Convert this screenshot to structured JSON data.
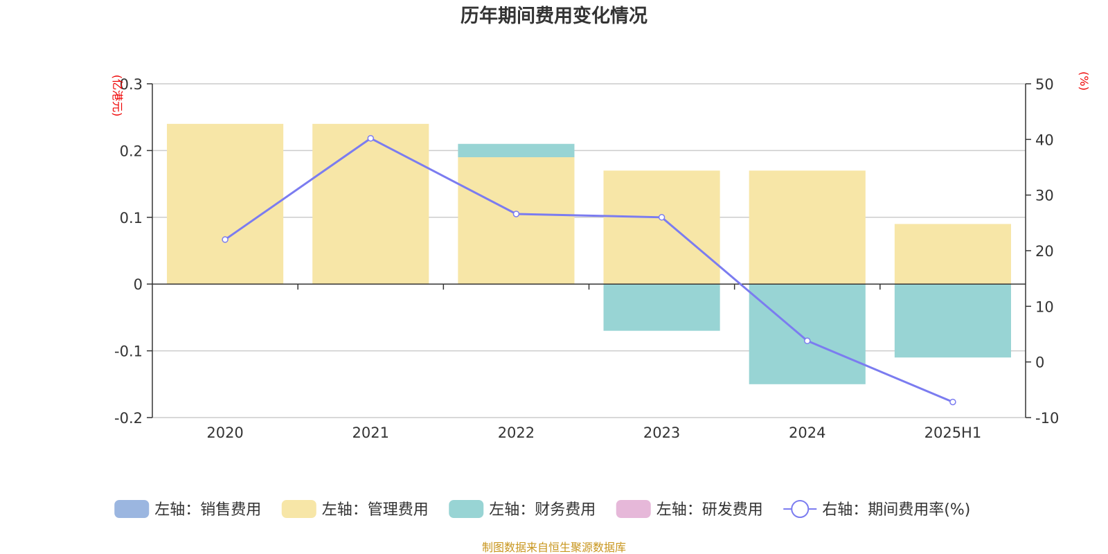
{
  "chart_data": {
    "type": "bar",
    "title": "历年期间费用变化情况",
    "categories": [
      "2020",
      "2021",
      "2022",
      "2023",
      "2024",
      "2025H1"
    ],
    "left_axis": {
      "unit_label": "(亿港元)",
      "ylim": [
        -0.2,
        0.3
      ],
      "ticks": [
        -0.2,
        -0.1,
        0,
        0.1,
        0.2,
        0.3
      ],
      "tick_labels": [
        "-0.2",
        "-0.1",
        "0",
        "0.1",
        "0.2",
        "0.3"
      ]
    },
    "right_axis": {
      "unit_label": "(%)",
      "ylim": [
        -10,
        50
      ],
      "ticks": [
        -10,
        0,
        10,
        20,
        30,
        40,
        50
      ],
      "tick_labels": [
        "-10",
        "0",
        "10",
        "20",
        "30",
        "40",
        "50"
      ]
    },
    "series": [
      {
        "name": "左轴：销售费用",
        "type": "bar",
        "axis": "left",
        "color": "#9bb6e0",
        "values": [
          0,
          0,
          0,
          0,
          0,
          0
        ]
      },
      {
        "name": "左轴：管理费用",
        "type": "bar",
        "axis": "left",
        "color": "#f7e6a7",
        "values": [
          0.24,
          0.24,
          0.19,
          0.17,
          0.17,
          0.09
        ]
      },
      {
        "name": "左轴：财务费用",
        "type": "bar",
        "axis": "left",
        "color": "#98d4d4",
        "values": [
          0,
          0,
          0.02,
          -0.07,
          -0.15,
          -0.11
        ]
      },
      {
        "name": "左轴：研发费用",
        "type": "bar",
        "axis": "left",
        "color": "#e6b8d9",
        "values": [
          0,
          0,
          0,
          0,
          0,
          0
        ]
      },
      {
        "name": "右轴：期间费用率(%)",
        "type": "line",
        "axis": "right",
        "color": "#7b7cf0",
        "values": [
          22,
          40.2,
          26.6,
          26,
          3.8,
          -7.2
        ]
      }
    ],
    "source": "制图数据来自恒生聚源数据库"
  }
}
